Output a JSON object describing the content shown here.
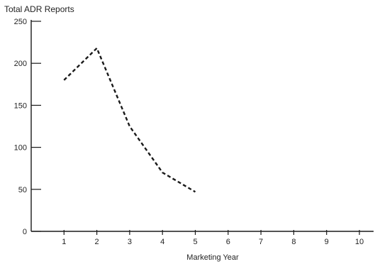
{
  "chart_data": {
    "type": "line",
    "title": "Total ADR Reports",
    "xlabel": "Marketing Year",
    "ylabel": "Total ADR Reports",
    "xlim": [
      0,
      10
    ],
    "ylim": [
      0,
      250
    ],
    "x_ticks": [
      1,
      2,
      3,
      4,
      5,
      6,
      7,
      8,
      9,
      10
    ],
    "y_ticks": [
      0,
      50,
      100,
      150,
      200,
      250
    ],
    "grid": false,
    "legend": "none",
    "series": [
      {
        "x": [
          1,
          2,
          3,
          4,
          5
        ],
        "values": [
          180,
          218,
          125,
          70,
          47
        ]
      }
    ]
  }
}
